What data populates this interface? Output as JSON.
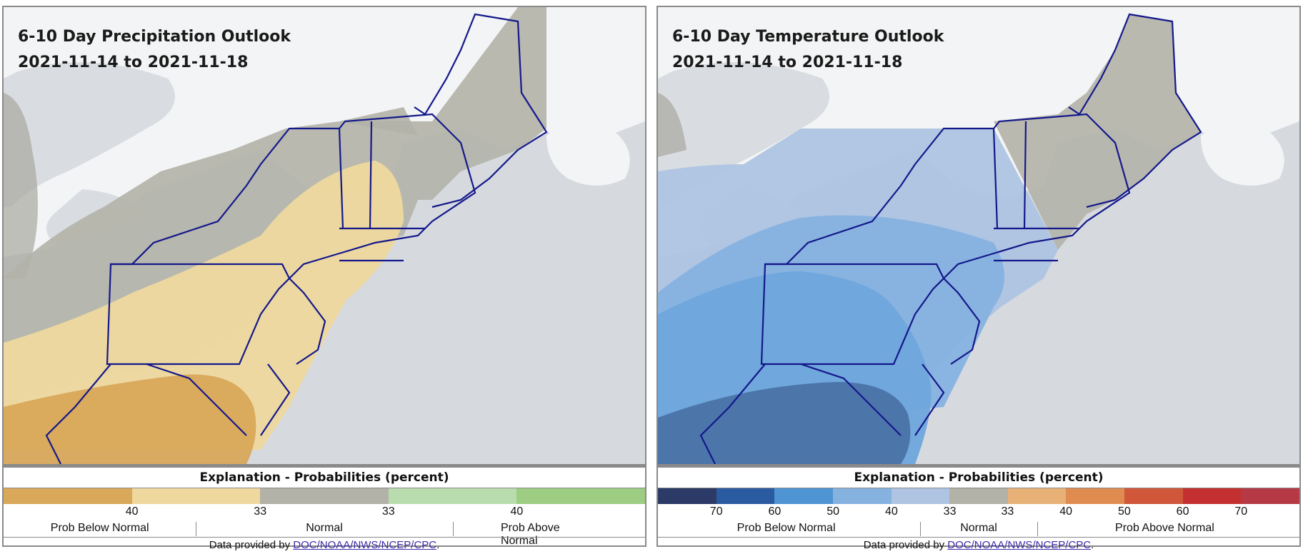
{
  "panels": [
    {
      "title": "6-10 Day Precipitation Outlook",
      "date_range": "2021-11-14 to 2021-11-18",
      "legend_title": "Explanation - Probabilities (percent)",
      "legend_colors": [
        "#d9a85a",
        "#eed89e",
        "#b3b2a8",
        "#b9dcae",
        "#9ccd83"
      ],
      "tick_labels": [
        "40",
        "33",
        "33",
        "40"
      ],
      "categories": [
        "Prob Below Normal",
        "Normal",
        "Prob Above Normal"
      ],
      "credit_prefix": "Data provided by ",
      "credit_link": "DOC/NOAA/NWS/NCEP/CPC",
      "credit_suffix": "."
    },
    {
      "title": "6-10 Day Temperature Outlook",
      "date_range": "2021-11-14 to 2021-11-18",
      "legend_title": "Explanation - Probabilities (percent)",
      "legend_colors": [
        "#2b3a66",
        "#2a5aa0",
        "#4f95d4",
        "#86b2e0",
        "#aec4e2",
        "#b3b2a8",
        "#e8b178",
        "#e08c50",
        "#d0573a",
        "#c43030",
        "#b63a45"
      ],
      "tick_labels": [
        "70",
        "60",
        "50",
        "40",
        "33",
        "33",
        "40",
        "50",
        "60",
        "70"
      ],
      "categories": [
        "Prob Below Normal",
        "Normal",
        "Prob Above Normal"
      ],
      "credit_prefix": "Data provided by ",
      "credit_link": "DOC/NOAA/NWS/NCEP/CPC",
      "credit_suffix": "."
    }
  ]
}
